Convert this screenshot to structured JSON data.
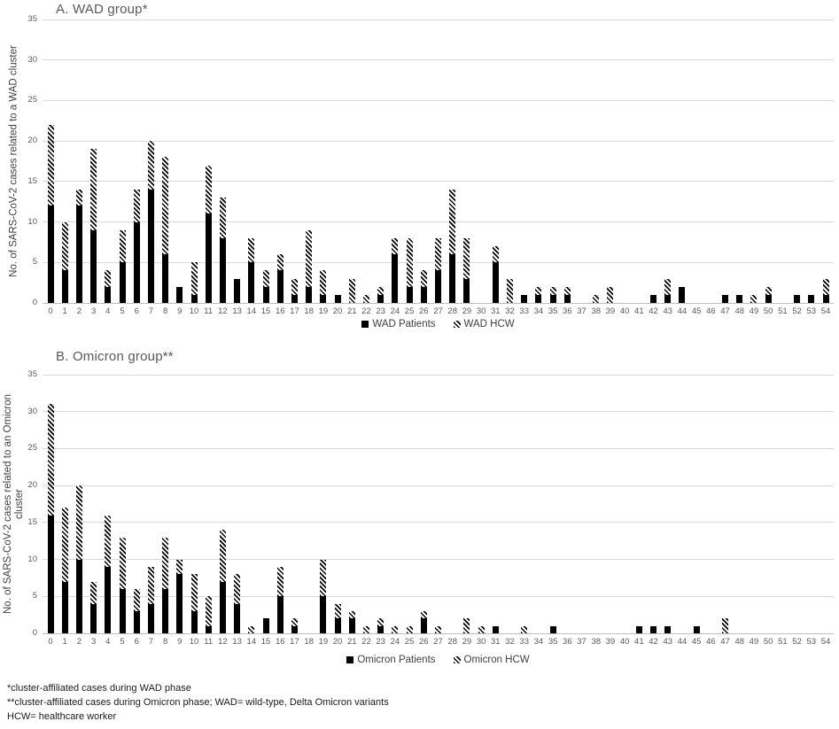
{
  "figure": {
    "footnotes": [
      "*cluster-affiliated cases during WAD phase",
      "**cluster-affiliated cases during Omicron phase; WAD= wild-type, Delta Omicron variants",
      "HCW= healthcare worker"
    ]
  },
  "colors": {
    "bar_solid": "#000000",
    "bar_hatch_stripe": "#000000",
    "bar_hatch_bg": "#ffffff",
    "gridline": "#d9d9d9",
    "axis_line": "#bfbfbf",
    "tick_text": "#595959",
    "title_text": "#595959",
    "axis_title_text": "#404040",
    "footnote_text": "#1a1a1a"
  },
  "chart_data": [
    {
      "type": "bar",
      "stacked": true,
      "title": "A. WAD group*",
      "ylabel": "No. of SARS-CoV-2 cases related to a WAD cluster",
      "xlabel": "",
      "ylim": [
        0,
        35
      ],
      "yticks": [
        0,
        5,
        10,
        15,
        20,
        25,
        30,
        35
      ],
      "grid": true,
      "legend_position": "bottom",
      "categories": [
        0,
        1,
        2,
        3,
        4,
        5,
        6,
        7,
        8,
        9,
        10,
        11,
        12,
        13,
        14,
        15,
        16,
        17,
        18,
        19,
        20,
        21,
        22,
        23,
        24,
        25,
        26,
        27,
        28,
        29,
        30,
        31,
        32,
        33,
        34,
        35,
        36,
        37,
        38,
        39,
        40,
        41,
        42,
        43,
        44,
        45,
        46,
        47,
        48,
        49,
        50,
        51,
        52,
        53,
        54
      ],
      "series": [
        {
          "name": "WAD Patients",
          "pattern": "solid",
          "values": [
            12,
            4,
            12,
            9,
            2,
            5,
            10,
            14,
            6,
            2,
            1,
            11,
            8,
            3,
            5,
            2,
            4,
            1,
            2,
            1,
            1,
            0,
            0,
            1,
            6,
            2,
            2,
            4,
            6,
            3,
            0,
            5,
            0,
            1,
            1,
            1,
            1,
            0,
            0,
            0,
            0,
            0,
            1,
            1,
            2,
            0,
            0,
            1,
            1,
            0,
            1,
            0,
            1,
            1,
            1
          ]
        },
        {
          "name": "WAD HCW",
          "pattern": "hatch",
          "values": [
            10,
            6,
            2,
            10,
            2,
            4,
            4,
            6,
            12,
            0,
            4,
            6,
            5,
            0,
            3,
            2,
            2,
            2,
            7,
            3,
            0,
            3,
            1,
            1,
            2,
            6,
            2,
            4,
            8,
            5,
            0,
            2,
            3,
            0,
            1,
            1,
            1,
            0,
            1,
            2,
            0,
            0,
            0,
            2,
            0,
            0,
            0,
            0,
            0,
            1,
            1,
            0,
            0,
            0,
            2
          ]
        }
      ]
    },
    {
      "type": "bar",
      "stacked": true,
      "title": "B. Omicron group**",
      "ylabel": "No. of SARS-CoV-2 cases related to an Omicron cluster",
      "xlabel": "",
      "ylim": [
        0,
        35
      ],
      "yticks": [
        0,
        5,
        10,
        15,
        20,
        25,
        30,
        35
      ],
      "grid": true,
      "legend_position": "bottom",
      "categories": [
        0,
        1,
        2,
        3,
        4,
        5,
        6,
        7,
        8,
        9,
        10,
        11,
        12,
        13,
        14,
        15,
        16,
        17,
        18,
        19,
        20,
        21,
        22,
        23,
        24,
        25,
        26,
        27,
        28,
        29,
        30,
        31,
        32,
        33,
        34,
        35,
        36,
        37,
        38,
        39,
        40,
        41,
        42,
        43,
        44,
        45,
        46,
        47,
        48,
        49,
        50,
        51,
        52,
        53,
        54
      ],
      "series": [
        {
          "name": "Omicron Patients",
          "pattern": "solid",
          "values": [
            16,
            7,
            10,
            4,
            9,
            6,
            3,
            4,
            6,
            8,
            3,
            1,
            7,
            4,
            0,
            2,
            5,
            1,
            0,
            5,
            2,
            2,
            0,
            1,
            0,
            0,
            2,
            0,
            0,
            0,
            0,
            1,
            0,
            0,
            0,
            1,
            0,
            0,
            0,
            0,
            0,
            1,
            1,
            1,
            0,
            1,
            0,
            0,
            0,
            0,
            0,
            0,
            0,
            0,
            0
          ]
        },
        {
          "name": "Omicron HCW",
          "pattern": "hatch",
          "values": [
            15,
            10,
            10,
            3,
            7,
            7,
            3,
            5,
            7,
            2,
            5,
            4,
            7,
            4,
            1,
            0,
            4,
            1,
            0,
            5,
            2,
            1,
            1,
            1,
            1,
            1,
            1,
            1,
            0,
            2,
            1,
            0,
            0,
            1,
            0,
            0,
            0,
            0,
            0,
            0,
            0,
            0,
            0,
            0,
            0,
            0,
            0,
            2,
            0,
            0,
            0,
            0,
            0,
            0,
            0
          ]
        }
      ]
    }
  ]
}
